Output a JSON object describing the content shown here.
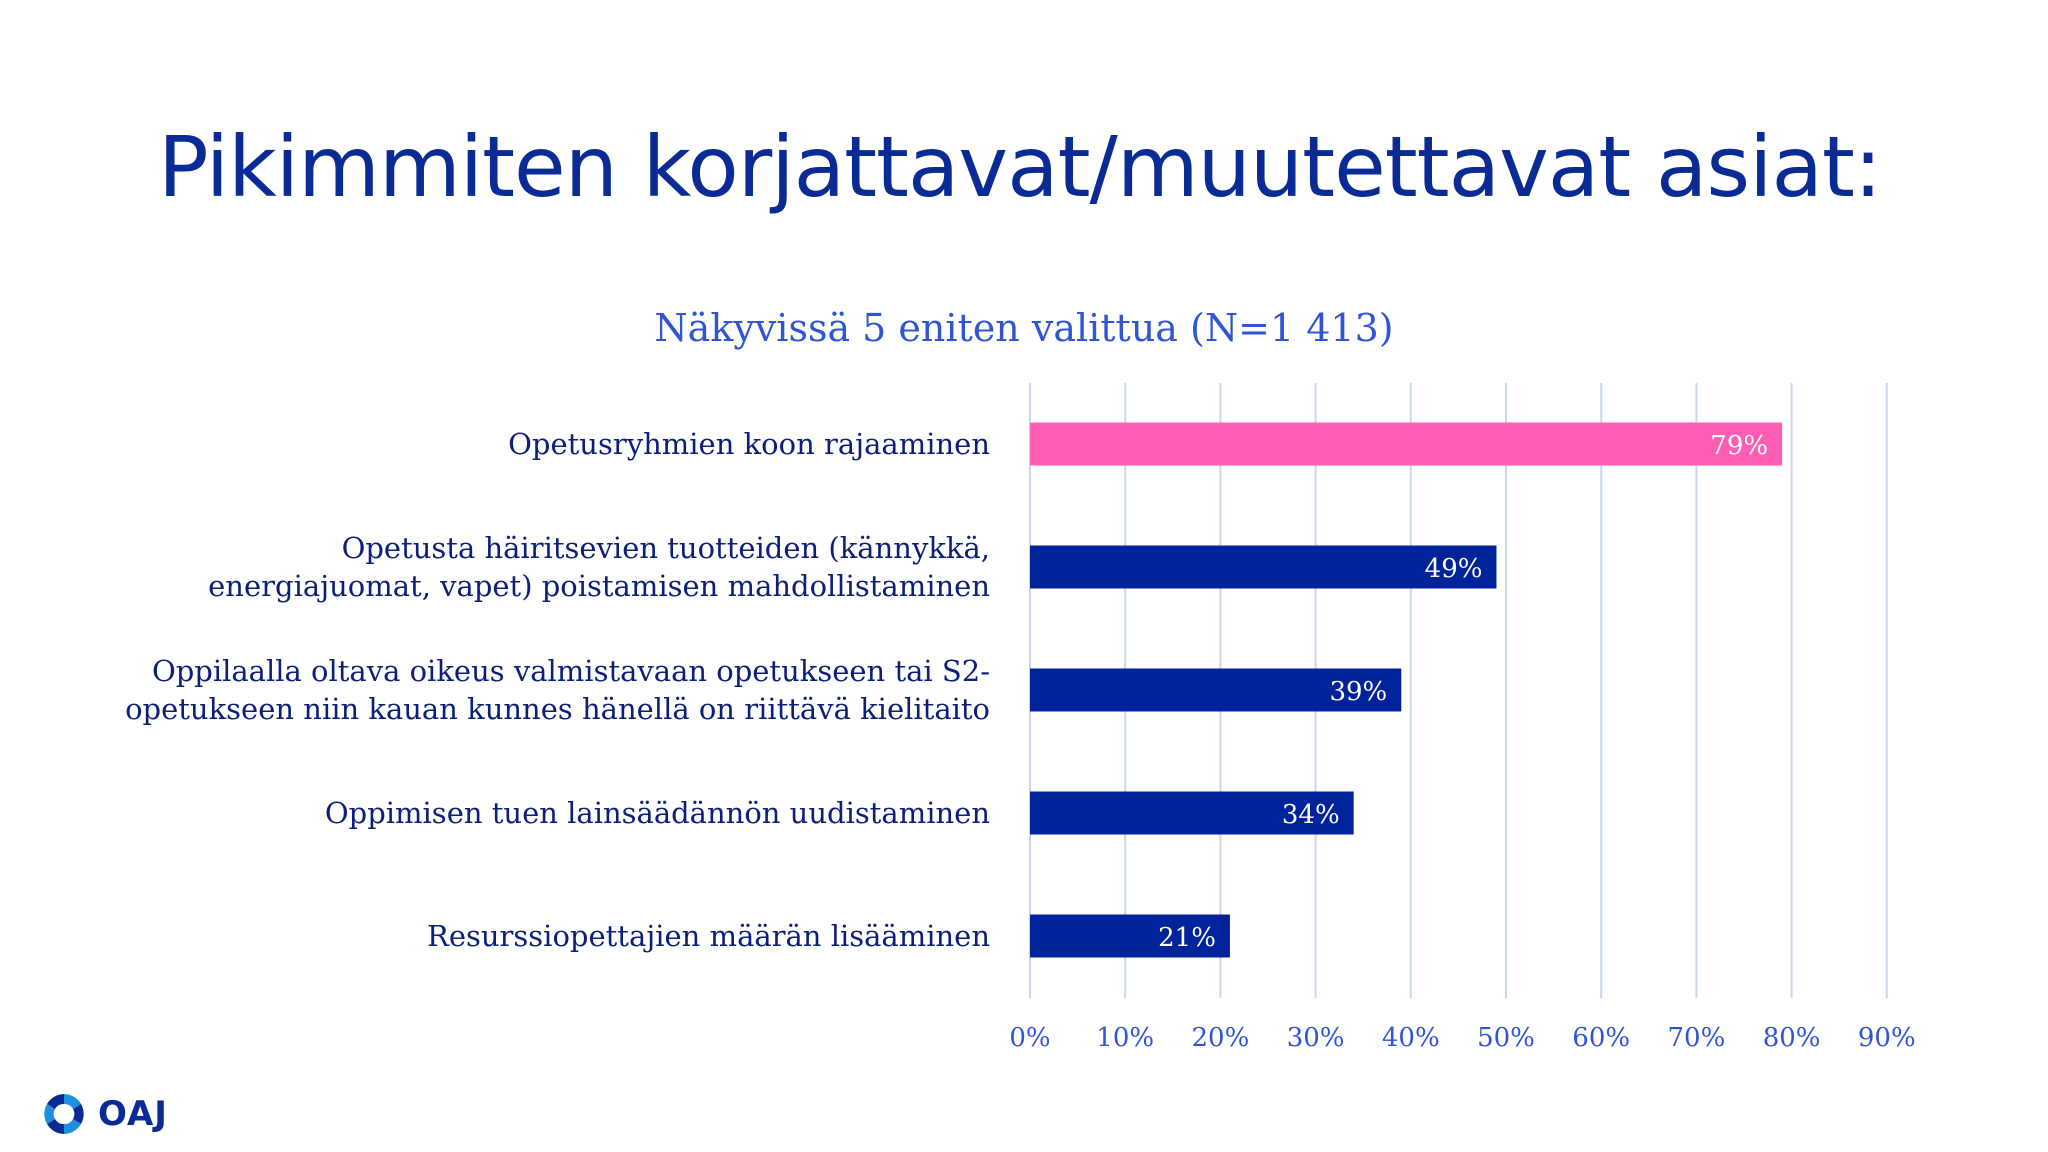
{
  "title": "Pikimmiten korjattavat/muutettavat asiat:",
  "logo": {
    "text": "OAJ",
    "icon": "oaj-swirl-icon"
  },
  "colors": {
    "highlight": "#ff5cb4",
    "bar": "#00239c",
    "grid": "#c9d6ee",
    "tick": "#2f55d4"
  },
  "chart_data": {
    "type": "bar",
    "orientation": "horizontal",
    "title": "Näkyvissä 5 eniten valittua (N=1 413)",
    "categories": [
      "Opetusryhmien koon rajaaminen",
      "Opetusta häiritsevien tuotteiden (kännykkä, energiajuomat, vapet) poistamisen mahdollistaminen",
      "Oppilaalla oltava oikeus valmistavaan opetukseen tai S2-opetukseen niin kauan kunnes hänellä on riittävä kielitaito",
      "Oppimisen tuen lainsäädännön uudistaminen",
      "Resurssiopettajien määrän lisääminen"
    ],
    "category_lines": [
      [
        "Opetusryhmien koon rajaaminen"
      ],
      [
        "Opetusta häiritsevien tuotteiden (kännykkä,",
        "energiajuomat, vapet) poistamisen mahdollistaminen"
      ],
      [
        "Oppilaalla oltava oikeus valmistavaan opetukseen tai S2-",
        "opetukseen niin kauan kunnes hänellä on riittävä kielitaito"
      ],
      [
        "Oppimisen tuen lainsäädännön uudistaminen"
      ],
      [
        "Resurssiopettajien määrän lisääminen"
      ]
    ],
    "values": [
      79,
      49,
      39,
      34,
      21
    ],
    "data_labels": [
      "79%",
      "49%",
      "39%",
      "34%",
      "21%"
    ],
    "highlight_index": 0,
    "xlim": [
      0,
      90
    ],
    "xticks": [
      0,
      10,
      20,
      30,
      40,
      50,
      60,
      70,
      80,
      90
    ],
    "xtick_labels": [
      "0%",
      "10%",
      "20%",
      "30%",
      "40%",
      "50%",
      "60%",
      "70%",
      "80%",
      "90%"
    ],
    "grid": true,
    "legend": "none"
  }
}
